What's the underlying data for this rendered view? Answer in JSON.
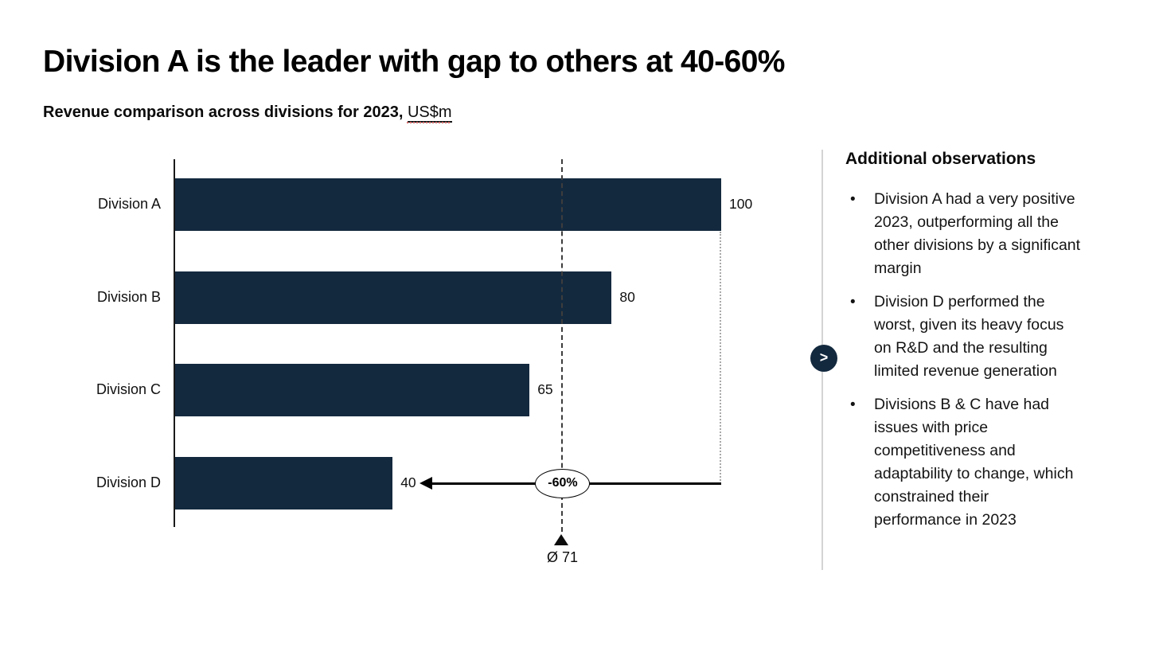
{
  "page": {
    "title": "Division A is the leader with gap to others at 40-60%",
    "subtitle_prefix": "Revenue comparison across divisions for 2023,",
    "subtitle_unit": "US$m"
  },
  "chart_data": {
    "type": "bar",
    "orientation": "horizontal",
    "title": "Revenue comparison across divisions for 2023, US$m",
    "categories": [
      "Division A",
      "Division B",
      "Division C",
      "Division D"
    ],
    "values": [
      100,
      80,
      65,
      40
    ],
    "value_labels": [
      "100",
      "80",
      "65",
      "40"
    ],
    "xlim": [
      0,
      100
    ],
    "grid": false,
    "legend": "none",
    "bar_color": "#13293E",
    "average": 71,
    "average_marker_label": "Ø 71",
    "delta_annotation": {
      "label": "-60%",
      "from_category": "Division A",
      "from_value": 100,
      "to_category": "Division D",
      "to_value": 40
    }
  },
  "observations": {
    "heading": "Additional observations",
    "bullets": [
      "Division A had a very positive\n2023, outperforming all the\nother divisions by a significant\nmargin",
      "Division D performed the\nworst, given its heavy focus\non R&D and the resulting\nlimited revenue generation",
      "Divisions B & C have had\nissues with price\ncompetitiveness and\nadaptability to change, which\nconstrained their\nperformance in 2023"
    ],
    "bullet_glyph": "•"
  },
  "expander": {
    "chevron_label": ">"
  },
  "colors": {
    "bar": "#13293E",
    "badge": "#13293E",
    "divider": "#d4d4d4",
    "dashed_line": "#3d3d3d",
    "dotted_line": "#a9a9a9"
  }
}
